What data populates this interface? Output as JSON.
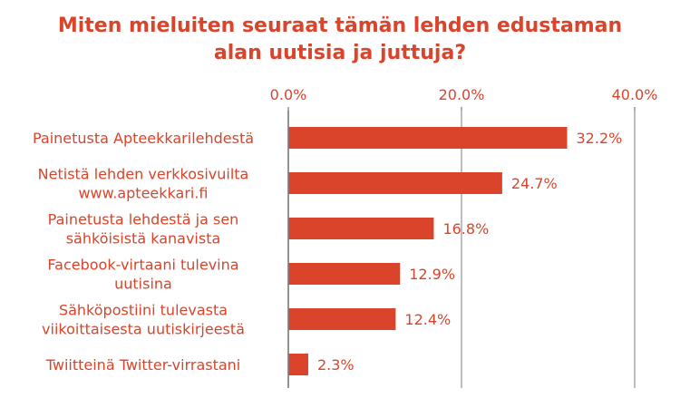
{
  "chart_data": {
    "type": "bar",
    "orientation": "horizontal",
    "title_lines": [
      "Miten mieluiten seuraat tämän lehden edustaman",
      "alan uutisia ja juttuja?"
    ],
    "categories": [
      [
        "Painetusta Apteekkarilehdestä"
      ],
      [
        "Netistä lehden verkkosivuilta",
        "www.apteekkari.fi"
      ],
      [
        "Painetusta lehdestä ja sen",
        "sähköisistä kanavista"
      ],
      [
        "Facebook-virtaani tulevina",
        "uutisina"
      ],
      [
        "Sähköpostiini tulevasta",
        "viikoittaisesta uutiskirjeestä"
      ],
      [
        "Twiitteinä Twitter-virrastani"
      ]
    ],
    "values": [
      32.2,
      24.7,
      16.8,
      12.9,
      12.4,
      2.3
    ],
    "data_labels": [
      "32.2%",
      "24.7%",
      "16.8%",
      "12.9%",
      "12.4%",
      "2.3%"
    ],
    "xlim": [
      0,
      40
    ],
    "x_ticks": [
      0,
      20,
      40
    ],
    "x_tick_labels": [
      "0.0%",
      "20.0%",
      "40.0%"
    ],
    "axis_position": "top",
    "grid": true,
    "colors": {
      "bar": "#d9442a",
      "text": "#d9442a",
      "grid": "#9a9a9a",
      "axis": "#7f7f7f"
    }
  }
}
